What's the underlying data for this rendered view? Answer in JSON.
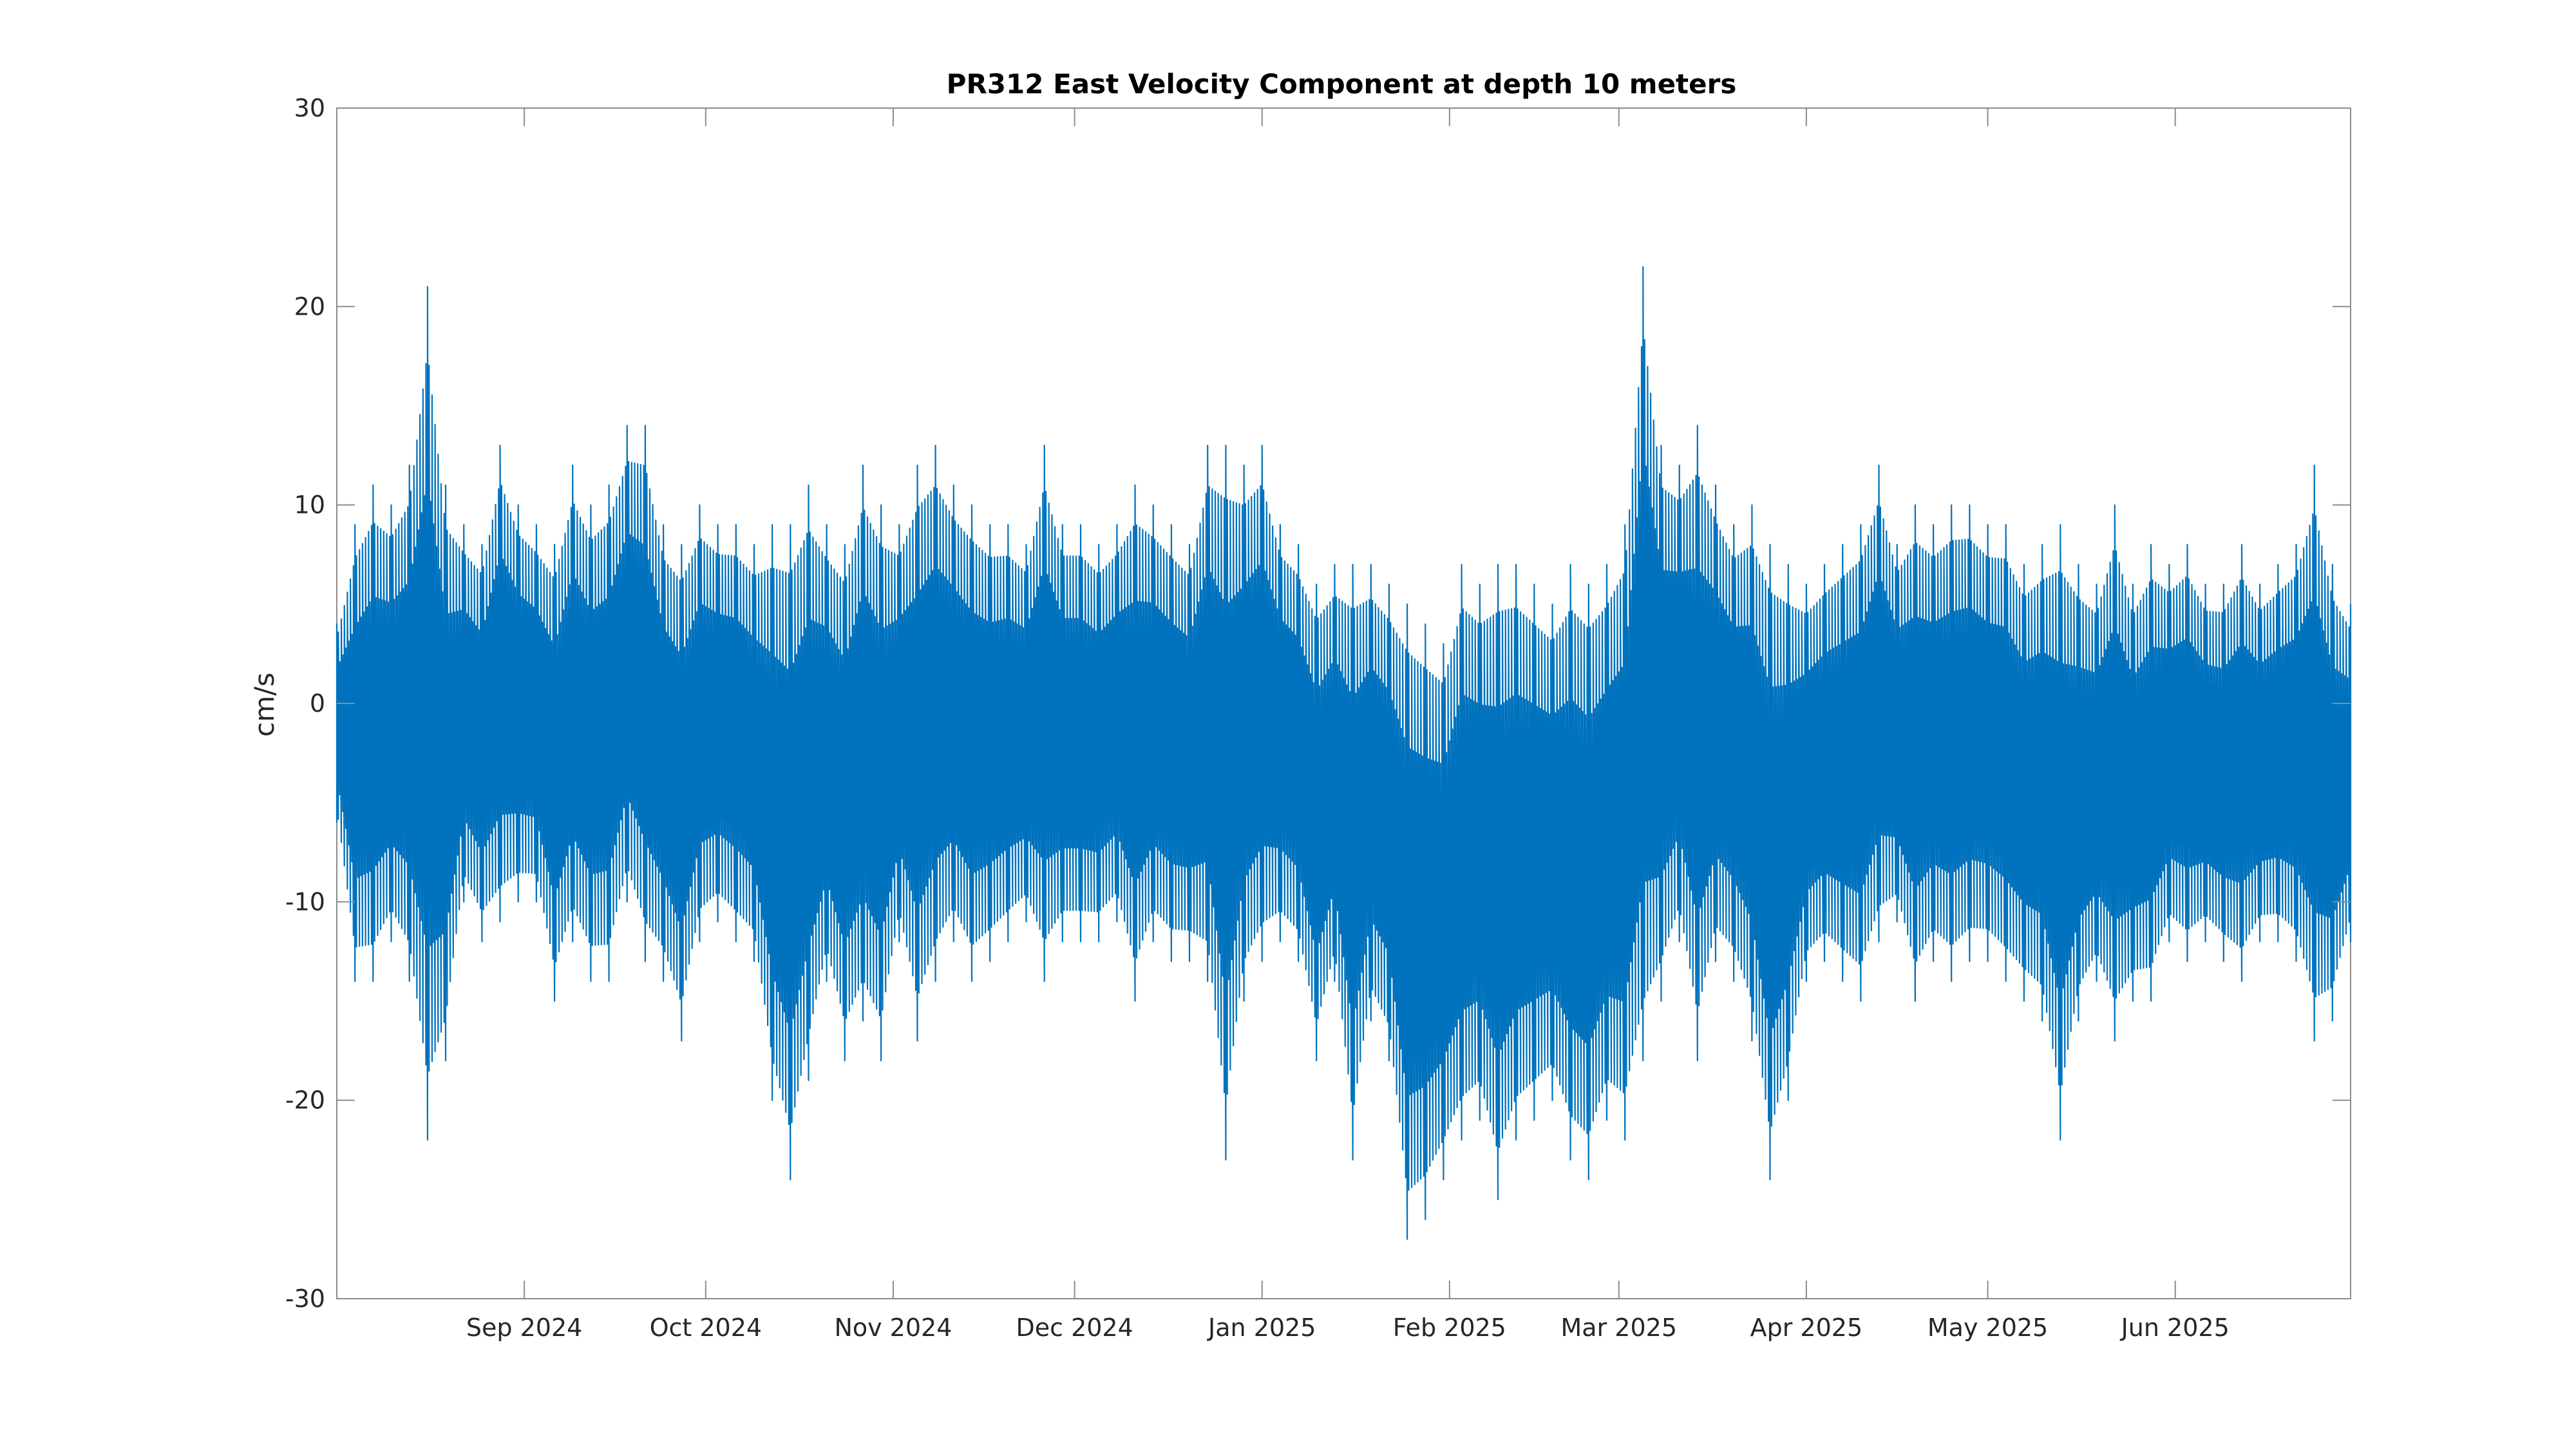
{
  "chart_data": {
    "type": "line",
    "title": "PR312 East Velocity Component at depth 10 meters",
    "xlabel": "",
    "ylabel": "cm/s",
    "xlim": [
      "2024-08-01",
      "2025-06-30"
    ],
    "ylim": [
      -30,
      30
    ],
    "yticks": [
      -30,
      -20,
      -10,
      0,
      10,
      20,
      30
    ],
    "xticks": [
      {
        "date": "2024-09-01",
        "label": "Sep 2024"
      },
      {
        "date": "2024-10-01",
        "label": "Oct 2024"
      },
      {
        "date": "2024-11-01",
        "label": "Nov 2024"
      },
      {
        "date": "2024-12-01",
        "label": "Dec 2024"
      },
      {
        "date": "2025-01-01",
        "label": "Jan 2025"
      },
      {
        "date": "2025-02-01",
        "label": "Feb 2025"
      },
      {
        "date": "2025-03-01",
        "label": "Mar 2025"
      },
      {
        "date": "2025-04-01",
        "label": "Apr 2025"
      },
      {
        "date": "2025-05-01",
        "label": "May 2025"
      },
      {
        "date": "2025-06-01",
        "label": "Jun 2025"
      }
    ],
    "grid": false,
    "series": [
      {
        "color": "#0072bd",
        "x": [
          "2024-08-01",
          "2024-08-04",
          "2024-08-07",
          "2024-08-10",
          "2024-08-13",
          "2024-08-16",
          "2024-08-19",
          "2024-08-22",
          "2024-08-25",
          "2024-08-28",
          "2024-08-31",
          "2024-09-03",
          "2024-09-06",
          "2024-09-09",
          "2024-09-12",
          "2024-09-15",
          "2024-09-18",
          "2024-09-21",
          "2024-09-24",
          "2024-09-27",
          "2024-09-30",
          "2024-10-03",
          "2024-10-06",
          "2024-10-09",
          "2024-10-12",
          "2024-10-15",
          "2024-10-18",
          "2024-10-21",
          "2024-10-24",
          "2024-10-27",
          "2024-10-30",
          "2024-11-02",
          "2024-11-05",
          "2024-11-08",
          "2024-11-11",
          "2024-11-14",
          "2024-11-17",
          "2024-11-20",
          "2024-11-23",
          "2024-11-26",
          "2024-11-29",
          "2024-12-02",
          "2024-12-05",
          "2024-12-08",
          "2024-12-11",
          "2024-12-14",
          "2024-12-17",
          "2024-12-20",
          "2024-12-23",
          "2024-12-26",
          "2024-12-29",
          "2025-01-01",
          "2025-01-04",
          "2025-01-07",
          "2025-01-10",
          "2025-01-13",
          "2025-01-16",
          "2025-01-19",
          "2025-01-22",
          "2025-01-25",
          "2025-01-28",
          "2025-01-31",
          "2025-02-03",
          "2025-02-06",
          "2025-02-09",
          "2025-02-12",
          "2025-02-15",
          "2025-02-18",
          "2025-02-21",
          "2025-02-24",
          "2025-02-27",
          "2025-03-02",
          "2025-03-05",
          "2025-03-08",
          "2025-03-11",
          "2025-03-14",
          "2025-03-17",
          "2025-03-20",
          "2025-03-23",
          "2025-03-26",
          "2025-03-29",
          "2025-04-01",
          "2025-04-04",
          "2025-04-07",
          "2025-04-10",
          "2025-04-13",
          "2025-04-16",
          "2025-04-19",
          "2025-04-22",
          "2025-04-25",
          "2025-04-28",
          "2025-05-01",
          "2025-05-04",
          "2025-05-07",
          "2025-05-10",
          "2025-05-13",
          "2025-05-16",
          "2025-05-19",
          "2025-05-22",
          "2025-05-25",
          "2025-05-28",
          "2025-05-31",
          "2025-06-03",
          "2025-06-06",
          "2025-06-09",
          "2025-06-12",
          "2025-06-15",
          "2025-06-18",
          "2025-06-21",
          "2025-06-24",
          "2025-06-27",
          "2025-06-30"
        ],
        "low": [
          -6,
          -14,
          -14,
          -12,
          -14,
          -22,
          -18,
          -10,
          -12,
          -11,
          -10,
          -10,
          -15,
          -12,
          -14,
          -14,
          -10,
          -13,
          -14,
          -17,
          -12,
          -11,
          -12,
          -13,
          -20,
          -24,
          -19,
          -14,
          -18,
          -16,
          -18,
          -12,
          -17,
          -14,
          -12,
          -14,
          -13,
          -12,
          -11,
          -14,
          -12,
          -12,
          -12,
          -11,
          -15,
          -12,
          -13,
          -13,
          -14,
          -23,
          -15,
          -13,
          -12,
          -13,
          -18,
          -14,
          -23,
          -16,
          -18,
          -27,
          -26,
          -24,
          -22,
          -21,
          -25,
          -22,
          -21,
          -20,
          -23,
          -24,
          -21,
          -22,
          -18,
          -15,
          -12,
          -18,
          -13,
          -14,
          -17,
          -24,
          -20,
          -14,
          -13,
          -14,
          -15,
          -12,
          -11,
          -15,
          -13,
          -14,
          -13,
          -13,
          -14,
          -15,
          -16,
          -22,
          -16,
          -14,
          -17,
          -15,
          -15,
          -12,
          -13,
          -12,
          -13,
          -14,
          -12,
          -12,
          -13,
          -17,
          -16,
          -12
        ],
        "high": [
          4,
          9,
          11,
          10,
          12,
          21,
          11,
          9,
          8,
          13,
          10,
          9,
          8,
          12,
          10,
          11,
          14,
          14,
          9,
          8,
          10,
          9,
          9,
          8,
          9,
          9,
          11,
          9,
          8,
          12,
          10,
          9,
          12,
          13,
          11,
          10,
          9,
          9,
          8,
          13,
          9,
          9,
          8,
          9,
          11,
          10,
          9,
          8,
          13,
          13,
          12,
          13,
          9,
          8,
          6,
          7,
          7,
          7,
          6,
          5,
          4,
          3,
          7,
          6,
          7,
          7,
          6,
          5,
          7,
          6,
          7,
          9,
          22,
          13,
          12,
          14,
          11,
          9,
          10,
          8,
          7,
          6,
          7,
          8,
          9,
          12,
          8,
          10,
          9,
          10,
          10,
          9,
          9,
          7,
          8,
          9,
          7,
          6,
          10,
          6,
          8,
          7,
          8,
          6,
          6,
          8,
          6,
          7,
          8,
          12,
          7,
          5
        ]
      }
    ]
  }
}
